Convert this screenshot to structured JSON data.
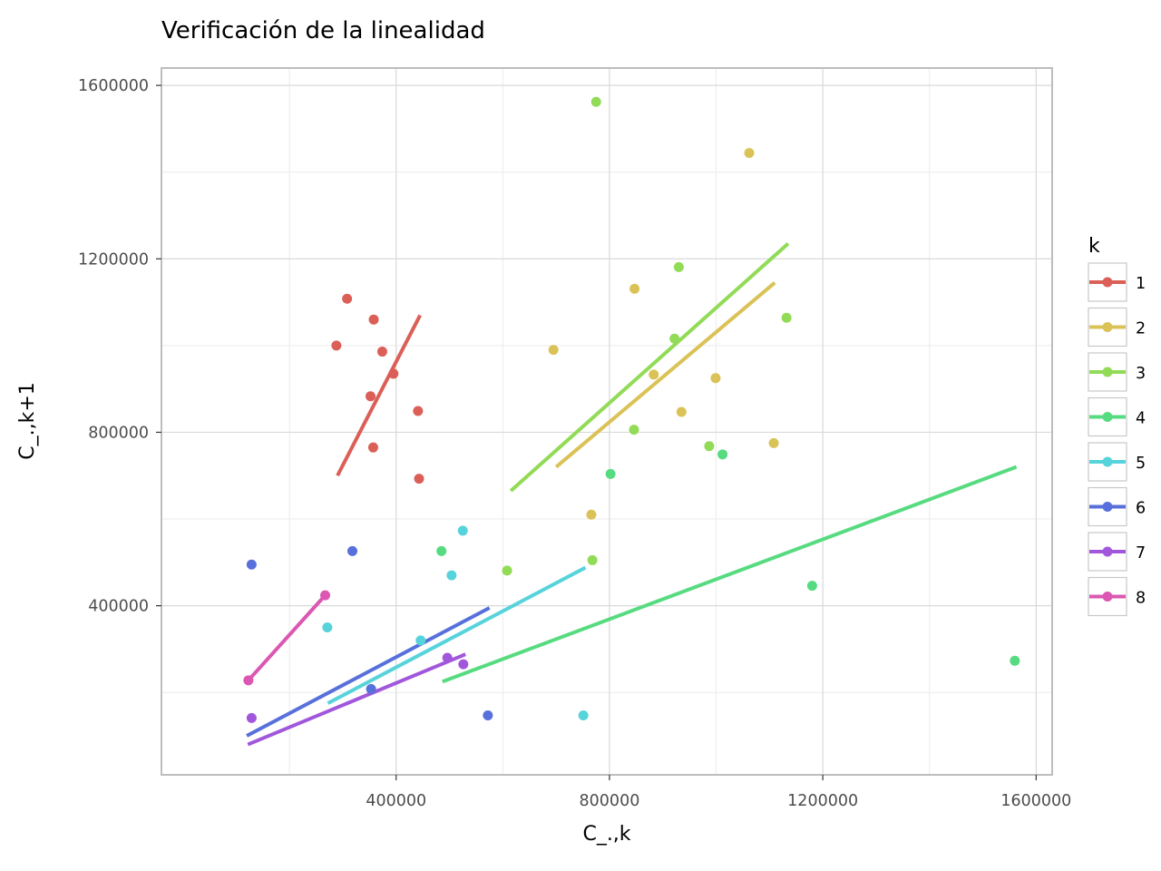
{
  "chart_data": {
    "type": "scatter",
    "title": "Verificación de la linealidad",
    "xlabel": "C_.,k",
    "ylabel": "C_.,k+1",
    "xlim": [
      -40000,
      1630000
    ],
    "ylim": [
      10000,
      1640000
    ],
    "x_ticks": [
      400000,
      800000,
      1200000,
      1600000
    ],
    "y_ticks": [
      400000,
      800000,
      1200000,
      1600000
    ],
    "x_tick_labels": [
      "400000",
      "800000",
      "1200000",
      "1600000"
    ],
    "y_tick_labels": [
      "400000",
      "800000",
      "1200000",
      "1600000"
    ],
    "grid": true,
    "legend": {
      "title": "k",
      "position": "right"
    },
    "series": [
      {
        "name": "1",
        "color": "#db5f57",
        "points": [
          [
            308000,
            1108000
          ],
          [
            358000,
            1060000
          ],
          [
            288000,
            1000000
          ],
          [
            374000,
            986000
          ],
          [
            395000,
            935000
          ],
          [
            352000,
            883000
          ],
          [
            441000,
            849000
          ],
          [
            357000,
            765000
          ],
          [
            443000,
            693000
          ]
        ],
        "fit": [
          [
            290000,
            700000
          ],
          [
            445000,
            1070000
          ]
        ]
      },
      {
        "name": "2",
        "color": "#dbc257",
        "points": [
          [
            1062000,
            1444000
          ],
          [
            847000,
            1131000
          ],
          [
            695000,
            990000
          ],
          [
            883000,
            933000
          ],
          [
            999000,
            925000
          ],
          [
            935000,
            847000
          ],
          [
            1108000,
            775000
          ],
          [
            766000,
            610000
          ]
        ],
        "fit": [
          [
            700000,
            720000
          ],
          [
            1110000,
            1145000
          ]
        ]
      },
      {
        "name": "3",
        "color": "#91db57",
        "points": [
          [
            775000,
            1562000
          ],
          [
            930000,
            1181000
          ],
          [
            1132000,
            1064000
          ],
          [
            922000,
            1016000
          ],
          [
            846000,
            806000
          ],
          [
            987000,
            768000
          ],
          [
            608000,
            481000
          ],
          [
            768000,
            505000
          ]
        ],
        "fit": [
          [
            615000,
            665000
          ],
          [
            1135000,
            1235000
          ]
        ]
      },
      {
        "name": "4",
        "color": "#57db80",
        "points": [
          [
            802000,
            704000
          ],
          [
            1012000,
            749000
          ],
          [
            485000,
            526000
          ],
          [
            1180000,
            446000
          ],
          [
            1560000,
            273000
          ]
        ],
        "fit": [
          [
            487000,
            225000
          ],
          [
            1563000,
            720000
          ]
        ]
      },
      {
        "name": "5",
        "color": "#57d3db",
        "points": [
          [
            525000,
            573000
          ],
          [
            504000,
            470000
          ],
          [
            271000,
            350000
          ],
          [
            446000,
            320000
          ],
          [
            751000,
            147000
          ]
        ],
        "fit": [
          [
            272000,
            175000
          ],
          [
            755000,
            488000
          ]
        ]
      },
      {
        "name": "6",
        "color": "#5770db",
        "points": [
          [
            318000,
            526000
          ],
          [
            129000,
            495000
          ],
          [
            353000,
            208000
          ],
          [
            572000,
            147000
          ]
        ],
        "fit": [
          [
            120000,
            100000
          ],
          [
            575000,
            395000
          ]
        ]
      },
      {
        "name": "7",
        "color": "#a157db",
        "points": [
          [
            496000,
            280000
          ],
          [
            526000,
            265000
          ],
          [
            129000,
            141000
          ]
        ],
        "fit": [
          [
            122000,
            80000
          ],
          [
            530000,
            288000
          ]
        ]
      },
      {
        "name": "8",
        "color": "#db57b2",
        "points": [
          [
            267000,
            424000
          ],
          [
            123000,
            228000
          ]
        ],
        "fit": [
          [
            123000,
            228000
          ],
          [
            267000,
            424000
          ]
        ]
      }
    ]
  }
}
